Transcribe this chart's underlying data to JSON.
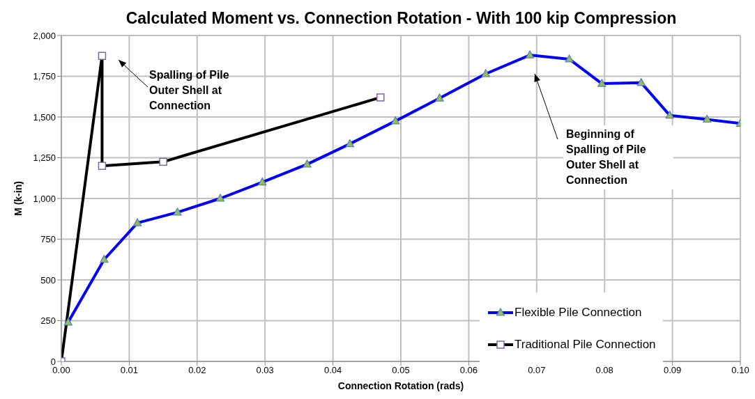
{
  "chart_data": {
    "type": "line",
    "title": "Calculated Moment vs. Connection Rotation - With 100 kip Compression",
    "xlabel": "Connection Rotation (rads)",
    "ylabel": "M (k-in)",
    "xlim": [
      0,
      0.1
    ],
    "xticks": [
      {
        "value": 0,
        "label": "0.00"
      },
      {
        "value": 0.01,
        "label": "0.01"
      },
      {
        "value": 0.02,
        "label": "0.02"
      },
      {
        "value": 0.03,
        "label": "0.03"
      },
      {
        "value": 0.04,
        "label": "0.04"
      },
      {
        "value": 0.05,
        "label": "0.05"
      },
      {
        "value": 0.06,
        "label": "0.06"
      },
      {
        "value": 0.07,
        "label": "0.07"
      },
      {
        "value": 0.08,
        "label": "0.08"
      },
      {
        "value": 0.09,
        "label": "0.09"
      },
      {
        "value": 0.1,
        "label": "0.10"
      }
    ],
    "ylim": [
      0,
      2000
    ],
    "yticks": [
      0,
      250,
      500,
      750,
      {
        "value": 1000,
        "label": "1,000"
      },
      {
        "value": 1250,
        "label": "1,250"
      },
      {
        "value": 1500,
        "label": "1,500"
      },
      {
        "value": 1750,
        "label": "1,750"
      },
      {
        "value": 2000,
        "label": "2,000"
      }
    ],
    "grid": true,
    "legend": "bottom right",
    "line_style": "solid",
    "series": [
      {
        "name": "Flexible Pile Connection",
        "color": "#0000ff",
        "marker": "triangle",
        "x": [
          0.001,
          0.0063,
          0.0112,
          0.0171,
          0.0234,
          0.0296,
          0.0362,
          0.0425,
          0.0492,
          0.0557,
          0.0625,
          0.069,
          0.0748,
          0.0796,
          0.0854,
          0.0896,
          0.0951,
          0.1
        ],
        "values": [
          240,
          625,
          850,
          915,
          1000,
          1100,
          1210,
          1335,
          1475,
          1615,
          1765,
          1880,
          1855,
          1705,
          1710,
          1510,
          1485,
          1460
        ]
      },
      {
        "name": "Traditional Pile Connection",
        "color": "#000000",
        "marker": "square",
        "x": [
          0,
          0.006,
          0.006,
          0.015,
          0.047
        ],
        "values": [
          0,
          1875,
          1200,
          1225,
          1620
        ]
      }
    ],
    "annotations": [
      "Spalling of Pile Outer Shell at Connection",
      "Beginning of Spalling of Pile Outer Shell at Connection"
    ]
  }
}
